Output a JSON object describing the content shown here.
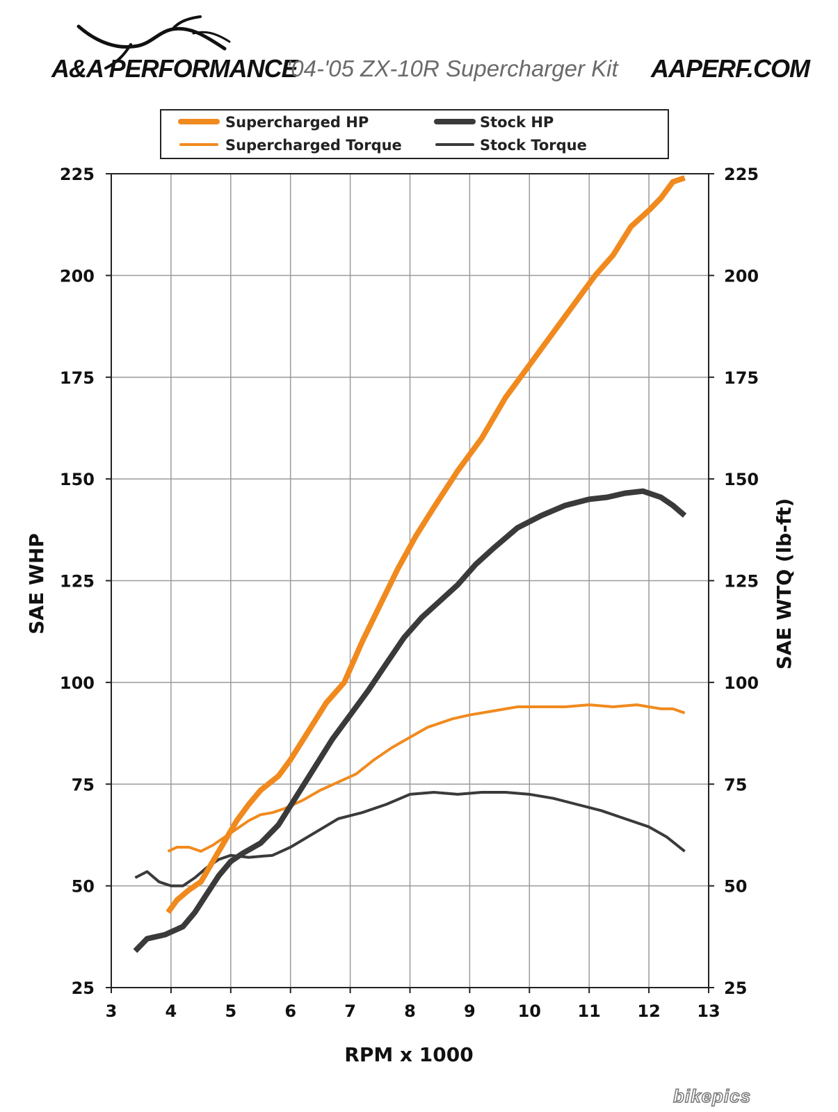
{
  "header": {
    "brand": "A&A PERFORMANCE",
    "kit_title": "'04-'05 ZX-10R Supercharger Kit",
    "site": "AAPERF.COM",
    "logo_icon": "bull-horns-icon"
  },
  "watermark": "bikepics",
  "colors": {
    "supercharged": "#f08a1e",
    "stock": "#3a3a3a",
    "grid": "#9a9a9a",
    "axis": "#222222"
  },
  "chart_data": {
    "type": "line",
    "xlabel": "RPM x 1000",
    "ylabel": "SAE WHP",
    "y2label": "SAE WTQ (lb-ft)",
    "xlim": [
      3,
      13
    ],
    "ylim": [
      25,
      225
    ],
    "x_ticks": [
      "3",
      "4",
      "5",
      "6",
      "7",
      "8",
      "9",
      "10",
      "11",
      "12",
      "13"
    ],
    "y_ticks": [
      "25",
      "50",
      "75",
      "100",
      "125",
      "150",
      "175",
      "200",
      "225"
    ],
    "y2_ticks": [
      "25",
      "50",
      "75",
      "100",
      "125",
      "150",
      "175",
      "200",
      "225"
    ],
    "grid": true,
    "legend_position": "top",
    "series": [
      {
        "name": "Supercharged HP",
        "color": "#f08a1e",
        "weight": "thick",
        "points": [
          [
            3.95,
            43.5
          ],
          [
            4.1,
            46.5
          ],
          [
            4.3,
            49
          ],
          [
            4.5,
            51
          ],
          [
            4.7,
            56
          ],
          [
            4.9,
            61
          ],
          [
            5.1,
            66
          ],
          [
            5.3,
            70
          ],
          [
            5.5,
            73.5
          ],
          [
            5.8,
            77
          ],
          [
            6.0,
            81
          ],
          [
            6.3,
            88
          ],
          [
            6.6,
            95
          ],
          [
            6.9,
            100
          ],
          [
            7.2,
            110
          ],
          [
            7.5,
            119
          ],
          [
            7.8,
            128
          ],
          [
            8.1,
            136
          ],
          [
            8.4,
            143
          ],
          [
            8.8,
            152
          ],
          [
            9.2,
            160
          ],
          [
            9.6,
            170
          ],
          [
            10.0,
            178
          ],
          [
            10.4,
            186
          ],
          [
            10.8,
            194
          ],
          [
            11.1,
            200
          ],
          [
            11.4,
            205
          ],
          [
            11.7,
            212
          ],
          [
            12.0,
            216
          ],
          [
            12.2,
            219
          ],
          [
            12.4,
            223
          ],
          [
            12.6,
            224
          ]
        ]
      },
      {
        "name": "Supercharged Torque",
        "color": "#f08a1e",
        "weight": "thin",
        "points": [
          [
            3.95,
            58.5
          ],
          [
            4.1,
            59.5
          ],
          [
            4.3,
            59.5
          ],
          [
            4.5,
            58.5
          ],
          [
            4.7,
            60
          ],
          [
            4.9,
            62
          ],
          [
            5.1,
            64
          ],
          [
            5.3,
            66
          ],
          [
            5.5,
            67.5
          ],
          [
            5.7,
            68
          ],
          [
            5.9,
            69
          ],
          [
            6.2,
            71
          ],
          [
            6.5,
            73.5
          ],
          [
            6.8,
            75.5
          ],
          [
            7.1,
            77.5
          ],
          [
            7.4,
            81
          ],
          [
            7.7,
            84
          ],
          [
            8.0,
            86.5
          ],
          [
            8.3,
            89
          ],
          [
            8.7,
            91
          ],
          [
            9.0,
            92
          ],
          [
            9.4,
            93
          ],
          [
            9.8,
            94
          ],
          [
            10.2,
            94
          ],
          [
            10.6,
            94
          ],
          [
            11.0,
            94.5
          ],
          [
            11.4,
            94
          ],
          [
            11.8,
            94.5
          ],
          [
            12.2,
            93.5
          ],
          [
            12.4,
            93.5
          ],
          [
            12.6,
            92.5
          ]
        ]
      },
      {
        "name": "Stock HP",
        "color": "#3a3a3a",
        "weight": "thick",
        "points": [
          [
            3.4,
            34
          ],
          [
            3.6,
            37
          ],
          [
            3.9,
            38
          ],
          [
            4.2,
            40
          ],
          [
            4.4,
            43.5
          ],
          [
            4.6,
            48
          ],
          [
            4.8,
            52.5
          ],
          [
            5.0,
            56
          ],
          [
            5.2,
            58
          ],
          [
            5.5,
            60.5
          ],
          [
            5.8,
            65
          ],
          [
            6.1,
            72
          ],
          [
            6.4,
            79
          ],
          [
            6.7,
            86
          ],
          [
            7.0,
            92
          ],
          [
            7.3,
            98
          ],
          [
            7.6,
            104.5
          ],
          [
            7.9,
            111
          ],
          [
            8.2,
            116
          ],
          [
            8.5,
            120
          ],
          [
            8.8,
            124
          ],
          [
            9.1,
            129
          ],
          [
            9.4,
            133
          ],
          [
            9.8,
            138
          ],
          [
            10.2,
            141
          ],
          [
            10.6,
            143.5
          ],
          [
            11.0,
            145
          ],
          [
            11.3,
            145.5
          ],
          [
            11.6,
            146.5
          ],
          [
            11.9,
            147
          ],
          [
            12.2,
            145.5
          ],
          [
            12.4,
            143.5
          ],
          [
            12.6,
            141
          ]
        ]
      },
      {
        "name": "Stock Torque",
        "color": "#3a3a3a",
        "weight": "thin",
        "points": [
          [
            3.4,
            52
          ],
          [
            3.6,
            53.5
          ],
          [
            3.8,
            51
          ],
          [
            4.0,
            50
          ],
          [
            4.2,
            50
          ],
          [
            4.4,
            52
          ],
          [
            4.6,
            54.5
          ],
          [
            4.8,
            56.5
          ],
          [
            5.0,
            57.5
          ],
          [
            5.3,
            57
          ],
          [
            5.7,
            57.5
          ],
          [
            6.0,
            59.5
          ],
          [
            6.4,
            63
          ],
          [
            6.8,
            66.5
          ],
          [
            7.2,
            68
          ],
          [
            7.6,
            70
          ],
          [
            8.0,
            72.5
          ],
          [
            8.4,
            73
          ],
          [
            8.8,
            72.5
          ],
          [
            9.2,
            73
          ],
          [
            9.6,
            73
          ],
          [
            10.0,
            72.5
          ],
          [
            10.4,
            71.5
          ],
          [
            10.8,
            70
          ],
          [
            11.2,
            68.5
          ],
          [
            11.6,
            66.5
          ],
          [
            12.0,
            64.5
          ],
          [
            12.3,
            62
          ],
          [
            12.6,
            58.5
          ]
        ]
      }
    ]
  }
}
